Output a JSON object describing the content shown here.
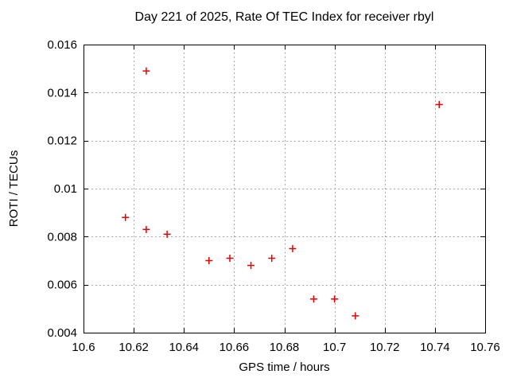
{
  "chart_data": {
    "type": "scatter",
    "title": "Day 221 of 2025, Rate Of TEC Index for receiver rbyl",
    "xlabel": "GPS time / hours",
    "ylabel": "ROTI / TECUs",
    "xlim": [
      10.6,
      10.76
    ],
    "ylim": [
      0.004,
      0.016
    ],
    "xtick_values": [
      10.6,
      10.62,
      10.64,
      10.66,
      10.68,
      10.7,
      10.72,
      10.74,
      10.76
    ],
    "xtick_labels": [
      "10.6",
      "10.62",
      "10.64",
      "10.66",
      "10.68",
      "10.7",
      "10.72",
      "10.74",
      "10.76"
    ],
    "ytick_values": [
      0.004,
      0.006,
      0.008,
      0.01,
      0.012,
      0.014,
      0.016
    ],
    "ytick_labels": [
      "0.004",
      "0.006",
      "0.008",
      "0.01",
      "0.012",
      "0.014",
      "0.016"
    ],
    "grid": "dashed",
    "legend": "none",
    "marker": {
      "shape": "plus",
      "color": "#e60000"
    },
    "colors": {
      "background": "#ffffff",
      "axis": "#000000",
      "grid": "#a8a8a8",
      "text": "#000000"
    },
    "series": [
      {
        "name": "ROTI",
        "points": [
          [
            10.6167,
            0.0088
          ],
          [
            10.625,
            0.0149
          ],
          [
            10.625,
            0.0083
          ],
          [
            10.6333,
            0.0081
          ],
          [
            10.65,
            0.007
          ],
          [
            10.6583,
            0.0071
          ],
          [
            10.6667,
            0.0068
          ],
          [
            10.675,
            0.0071
          ],
          [
            10.6833,
            0.0075
          ],
          [
            10.6917,
            0.0054
          ],
          [
            10.7,
            0.0054
          ],
          [
            10.7083,
            0.0047
          ],
          [
            10.7417,
            0.0135
          ]
        ]
      }
    ]
  }
}
